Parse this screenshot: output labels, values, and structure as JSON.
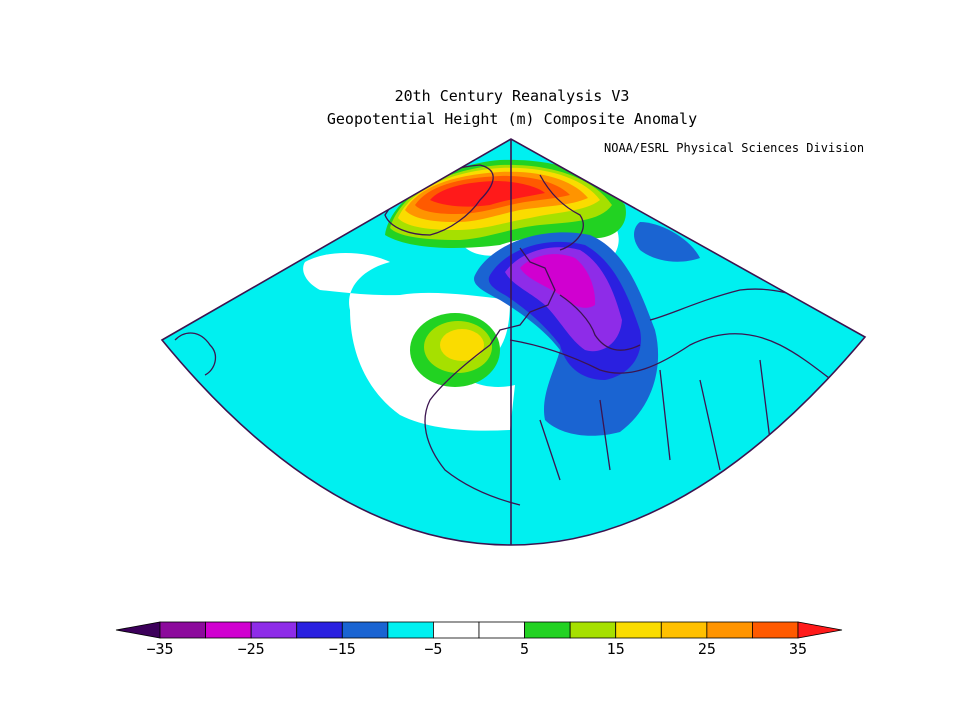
{
  "title_line1": "20th Century Reanalysis V3",
  "title_line2": "Geopotential Height (m) Composite Anomaly",
  "credit": "NOAA/ESRL Physical Sciences Division",
  "colorbar": {
    "bins": [
      {
        "low": -40,
        "high": -35,
        "color": "#3c005a"
      },
      {
        "low": -35,
        "high": -30,
        "color": "#8c0a9c"
      },
      {
        "low": -30,
        "high": -25,
        "color": "#d000d0"
      },
      {
        "low": -25,
        "high": -20,
        "color": "#8e2ce8"
      },
      {
        "low": -20,
        "high": -15,
        "color": "#2a20e0"
      },
      {
        "low": -15,
        "high": -10,
        "color": "#1a64d2"
      },
      {
        "low": -10,
        "high": -5,
        "color": "#00f0f0"
      },
      {
        "low": -5,
        "high": 0,
        "color": "#ffffff"
      },
      {
        "low": 0,
        "high": 5,
        "color": "#ffffff"
      },
      {
        "low": 5,
        "high": 10,
        "color": "#22d222"
      },
      {
        "low": 10,
        "high": 15,
        "color": "#a6e000"
      },
      {
        "low": 15,
        "high": 20,
        "color": "#fadc00"
      },
      {
        "low": 20,
        "high": 25,
        "color": "#ffc000"
      },
      {
        "low": 25,
        "high": 30,
        "color": "#ff9400"
      },
      {
        "low": 30,
        "high": 35,
        "color": "#ff5a00"
      },
      {
        "low": 35,
        "high": 40,
        "color": "#ff1a1a"
      }
    ],
    "tick_labels": [
      "−35",
      "−25",
      "−15",
      "−5",
      "5",
      "15",
      "25",
      "35"
    ],
    "tick_values": [
      -35,
      -25,
      -15,
      -5,
      5,
      15,
      25,
      35
    ]
  },
  "colors": {
    "background_anomaly": "#00f0f0",
    "near_zero": "#ffffff",
    "border": "#3c1450"
  }
}
